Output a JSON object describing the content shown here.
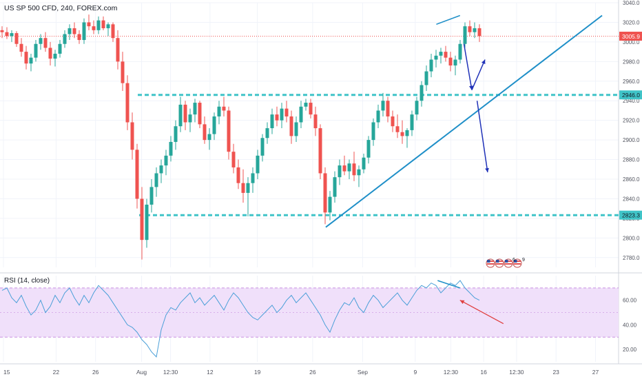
{
  "header": {
    "symbol_label": "US SP 500 CFD, 240, FOREX.com"
  },
  "rsi_panel": {
    "label": "RSI (14, close)"
  },
  "colors": {
    "up": "#26a69a",
    "down": "#ef5350",
    "support": "#40c4c8",
    "trendline": "#1f8fc8",
    "projection": "#2032b8",
    "rsi_line": "#4a9fd8",
    "rsi_band": "#f0e0fa",
    "rsi_band_border": "#c890e0",
    "divergence_arrow": "#e04040",
    "price_line": "#ef5350",
    "price_label_bg": "#ef5350",
    "level_label_bg": "#40c4c8"
  },
  "badges": {
    "icons": [
      "us-flag-icon",
      "us-flag-icon",
      "us-flag-icon",
      "us-flag-icon"
    ],
    "counts": [
      "6",
      "9"
    ]
  },
  "chart_data": [
    {
      "type": "candlestick",
      "title": "US SP 500 CFD, 240, FOREX.com",
      "ylim": [
        2770,
        3040
      ],
      "y_ticks": [
        2780,
        2800,
        2820,
        2840,
        2860,
        2880,
        2900,
        2920,
        2940,
        2960,
        2980,
        3000,
        3020,
        3040
      ],
      "x_ticks": [
        "15",
        "22",
        "26",
        "Aug",
        "12:30",
        "12",
        "19",
        "26",
        "Sep",
        "9",
        "12:30",
        "16",
        "12:30",
        "23",
        "27"
      ],
      "current_price": {
        "value": 3005.9,
        "label": "3005.9"
      },
      "levels": [
        {
          "value": 2946.0,
          "label": "2946.0"
        },
        {
          "value": 2823.3,
          "label": "2823.3"
        }
      ],
      "trendlines": [
        {
          "from": [
            26,
            2811
          ],
          "to": [
            47,
            3027
          ]
        }
      ],
      "projections": [
        {
          "from": [
            44.2,
            2998
          ],
          "to": [
            44.8,
            2951
          ]
        },
        {
          "from": [
            44.8,
            2951
          ],
          "to": [
            45.8,
            2982
          ]
        },
        {
          "from": [
            45.2,
            2940
          ],
          "to": [
            46.0,
            2867
          ]
        }
      ],
      "high_divergence_line": {
        "from": [
          41.8,
          3018
        ],
        "to": [
          43.6,
          3027
        ]
      },
      "ohlc": [
        [
          3012,
          3016,
          3004,
          3010
        ],
        [
          3010,
          3015,
          3003,
          3006
        ],
        [
          3006,
          3012,
          3000,
          3009
        ],
        [
          3009,
          3011,
          2995,
          2998
        ],
        [
          2998,
          3004,
          2985,
          2990
        ],
        [
          2990,
          2996,
          2972,
          2978
        ],
        [
          2978,
          2988,
          2970,
          2984
        ],
        [
          2984,
          3002,
          2980,
          2998
        ],
        [
          2998,
          3008,
          2992,
          3004
        ],
        [
          3004,
          3010,
          2990,
          2994
        ],
        [
          2994,
          3000,
          2976,
          2983
        ],
        [
          2983,
          2992,
          2975,
          2988
        ],
        [
          2988,
          3002,
          2984,
          2998
        ],
        [
          2998,
          3012,
          2994,
          3008
        ],
        [
          3008,
          3018,
          3002,
          3014
        ],
        [
          3014,
          3020,
          3004,
          3008
        ],
        [
          3008,
          3012,
          2998,
          3002
        ],
        [
          3002,
          3024,
          2998,
          3020
        ],
        [
          3020,
          3028,
          3012,
          3016
        ],
        [
          3016,
          3022,
          3008,
          3012
        ],
        [
          3012,
          3026,
          3008,
          3022
        ],
        [
          3022,
          3026,
          3012,
          3014
        ],
        [
          3014,
          3020,
          3006,
          3018
        ],
        [
          3018,
          3020,
          3000,
          3004
        ],
        [
          3004,
          3012,
          2972,
          2980
        ],
        [
          2980,
          2990,
          2950,
          2958
        ],
        [
          2958,
          2966,
          2910,
          2918
        ],
        [
          2918,
          2928,
          2880,
          2890
        ],
        [
          2890,
          2896,
          2830,
          2840
        ],
        [
          2840,
          2852,
          2778,
          2798
        ],
        [
          2798,
          2840,
          2790,
          2834
        ],
        [
          2834,
          2860,
          2826,
          2852
        ],
        [
          2852,
          2872,
          2842,
          2866
        ],
        [
          2866,
          2880,
          2856,
          2874
        ],
        [
          2874,
          2890,
          2864,
          2884
        ],
        [
          2884,
          2904,
          2878,
          2898
        ],
        [
          2898,
          2920,
          2890,
          2914
        ],
        [
          2914,
          2944,
          2908,
          2936
        ],
        [
          2936,
          2940,
          2910,
          2918
        ],
        [
          2918,
          2932,
          2908,
          2926
        ],
        [
          2926,
          2942,
          2918,
          2938
        ],
        [
          2938,
          2940,
          2912,
          2916
        ],
        [
          2916,
          2924,
          2896,
          2900
        ],
        [
          2900,
          2912,
          2890,
          2906
        ],
        [
          2906,
          2928,
          2900,
          2924
        ],
        [
          2924,
          2940,
          2916,
          2934
        ],
        [
          2934,
          2944,
          2924,
          2930
        ],
        [
          2930,
          2934,
          2880,
          2888
        ],
        [
          2888,
          2896,
          2866,
          2872
        ],
        [
          2872,
          2880,
          2850,
          2856
        ],
        [
          2856,
          2870,
          2836,
          2846
        ],
        [
          2846,
          2862,
          2822,
          2856
        ],
        [
          2856,
          2872,
          2846,
          2866
        ],
        [
          2866,
          2890,
          2860,
          2884
        ],
        [
          2884,
          2906,
          2878,
          2902
        ],
        [
          2902,
          2918,
          2896,
          2912
        ],
        [
          2912,
          2932,
          2906,
          2926
        ],
        [
          2926,
          2934,
          2914,
          2920
        ],
        [
          2920,
          2938,
          2912,
          2932
        ],
        [
          2932,
          2940,
          2918,
          2924
        ],
        [
          2924,
          2930,
          2896,
          2904
        ],
        [
          2904,
          2924,
          2898,
          2918
        ],
        [
          2918,
          2940,
          2912,
          2934
        ],
        [
          2934,
          2942,
          2930,
          2938
        ],
        [
          2938,
          2942,
          2922,
          2926
        ],
        [
          2926,
          2934,
          2904,
          2912
        ],
        [
          2912,
          2916,
          2860,
          2866
        ],
        [
          2866,
          2872,
          2814,
          2826
        ],
        [
          2826,
          2848,
          2818,
          2842
        ],
        [
          2842,
          2868,
          2836,
          2862
        ],
        [
          2862,
          2880,
          2854,
          2874
        ],
        [
          2874,
          2884,
          2864,
          2868
        ],
        [
          2868,
          2880,
          2860,
          2876
        ],
        [
          2876,
          2888,
          2858,
          2864
        ],
        [
          2864,
          2874,
          2852,
          2870
        ],
        [
          2870,
          2886,
          2866,
          2882
        ],
        [
          2882,
          2904,
          2876,
          2900
        ],
        [
          2900,
          2922,
          2894,
          2918
        ],
        [
          2918,
          2936,
          2912,
          2930
        ],
        [
          2930,
          2948,
          2924,
          2940
        ],
        [
          2940,
          2944,
          2918,
          2924
        ],
        [
          2924,
          2930,
          2908,
          2914
        ],
        [
          2914,
          2926,
          2902,
          2908
        ],
        [
          2908,
          2920,
          2896,
          2904
        ],
        [
          2904,
          2912,
          2892,
          2910
        ],
        [
          2910,
          2930,
          2904,
          2926
        ],
        [
          2926,
          2944,
          2920,
          2940
        ],
        [
          2940,
          2960,
          2934,
          2956
        ],
        [
          2956,
          2976,
          2950,
          2970
        ],
        [
          2970,
          2988,
          2964,
          2982
        ],
        [
          2982,
          2992,
          2974,
          2986
        ],
        [
          2986,
          2994,
          2978,
          2990
        ],
        [
          2990,
          2996,
          2980,
          2984
        ],
        [
          2984,
          2990,
          2970,
          2976
        ],
        [
          2976,
          2986,
          2966,
          2982
        ],
        [
          2982,
          3002,
          2978,
          2998
        ],
        [
          2998,
          3020,
          2994,
          3016
        ],
        [
          3016,
          3022,
          3006,
          3010
        ],
        [
          3010,
          3020,
          3004,
          3014
        ],
        [
          3014,
          3018,
          3000,
          3006
        ]
      ]
    },
    {
      "type": "line",
      "title": "RSI (14, close)",
      "ylim": [
        10,
        80
      ],
      "y_ticks": [
        20,
        40,
        60
      ],
      "bands": [
        30,
        70
      ],
      "series": [
        {
          "x_start": 0,
          "x_end": 45,
          "values": [
            68,
            70,
            62,
            58,
            64,
            55,
            48,
            52,
            60,
            50,
            55,
            64,
            58,
            66,
            70,
            62,
            56,
            64,
            58,
            66,
            72,
            68,
            64,
            58,
            52,
            46,
            40,
            38,
            34,
            28,
            24,
            18,
            14,
            36,
            48,
            54,
            52,
            58,
            62,
            66,
            58,
            62,
            56,
            60,
            64,
            58,
            52,
            60,
            66,
            62,
            56,
            50,
            46,
            44,
            48,
            52,
            56,
            50,
            54,
            60,
            64,
            58,
            62,
            66,
            60,
            54,
            48,
            40,
            34,
            44,
            52,
            58,
            56,
            62,
            54,
            50,
            58,
            64,
            60,
            54,
            58,
            62,
            66,
            60,
            56,
            62,
            68,
            72,
            70,
            74,
            72,
            66,
            70,
            74,
            72,
            76,
            70,
            66,
            62,
            60
          ]
        }
      ],
      "divergence_line": {
        "from": [
          41.9,
          76
        ],
        "to": [
          43.6,
          70
        ]
      },
      "divergence_arrow": {
        "from": [
          47.0,
          41
        ],
        "to": [
          43.6,
          60
        ]
      }
    }
  ]
}
